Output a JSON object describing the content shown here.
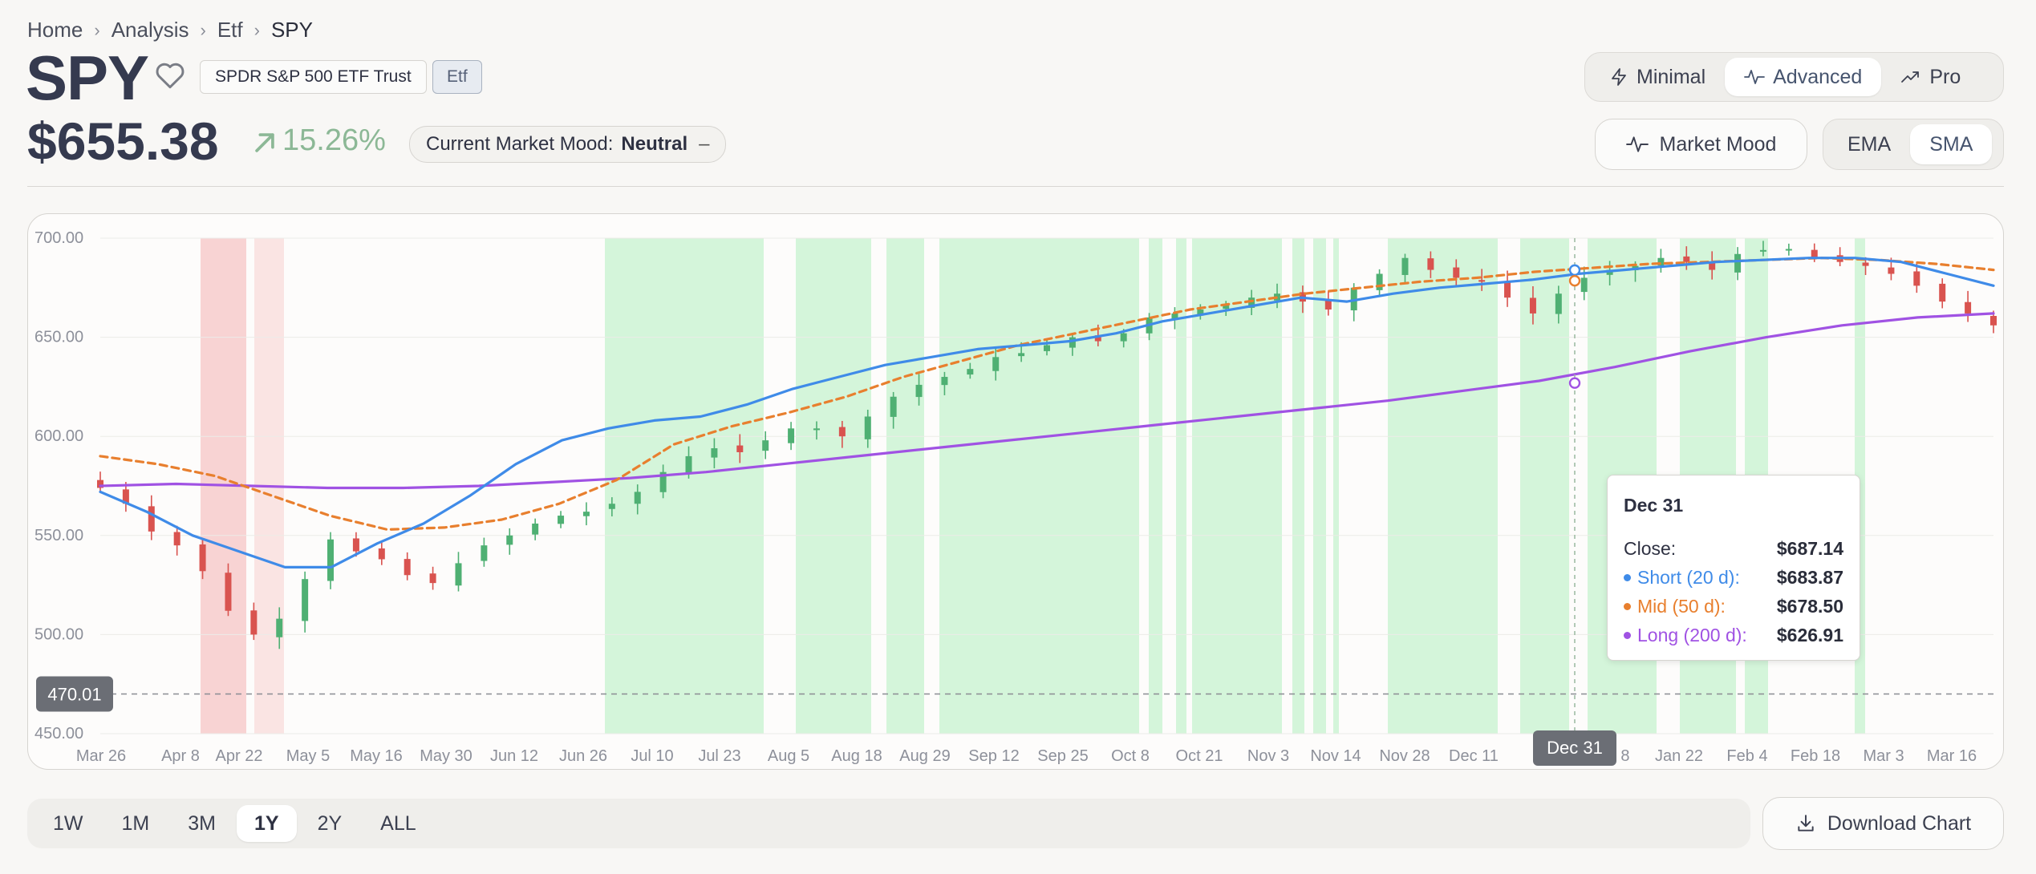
{
  "breadcrumb": [
    "Home",
    "Analysis",
    "Etf",
    "SPY"
  ],
  "header": {
    "ticker": "SPY",
    "name": "SPDR S&P 500 ETF Trust",
    "type_badge": "Etf",
    "price": "$655.38",
    "change": "15.26%",
    "mood_label": "Current Market Mood:",
    "mood_value": "Neutral",
    "mood_symbol": "–"
  },
  "view_modes": [
    {
      "label": "Minimal",
      "icon": "lightning-icon",
      "active": false
    },
    {
      "label": "Advanced",
      "icon": "pulse-icon",
      "active": true
    },
    {
      "label": "Pro",
      "icon": "trend-up-icon",
      "active": false
    }
  ],
  "market_mood_button": "Market Mood",
  "ma_types": [
    {
      "label": "EMA",
      "active": false
    },
    {
      "label": "SMA",
      "active": true
    }
  ],
  "time_ranges": [
    {
      "label": "1W",
      "active": false
    },
    {
      "label": "1M",
      "active": false
    },
    {
      "label": "3M",
      "active": false
    },
    {
      "label": "1Y",
      "active": true
    },
    {
      "label": "2Y",
      "active": false
    },
    {
      "label": "ALL",
      "active": false
    }
  ],
  "download_button": "Download Chart",
  "colors": {
    "up": "#4fb073",
    "down": "#d9534f",
    "short_ma": "#3f8be8",
    "mid_ma": "#e87f2e",
    "long_ma": "#a052e3",
    "bull_zone": "#d4f5da",
    "bear_zone": "#f8d3d3"
  },
  "chart_data": {
    "type": "candlestick",
    "x_ticks": [
      "Mar 26",
      "Apr 8",
      "Apr 22",
      "May 5",
      "May 16",
      "May 30",
      "Jun 12",
      "Jun 26",
      "Jul 10",
      "Jul 23",
      "Aug 5",
      "Aug 18",
      "Aug 29",
      "Sep 12",
      "Sep 25",
      "Oct 8",
      "Oct 21",
      "Nov 3",
      "Nov 14",
      "Nov 28",
      "Dec 11",
      "Dec 24",
      "Jan 8",
      "Jan 22",
      "Feb 4",
      "Feb 18",
      "Mar 3",
      "Mar 16"
    ],
    "y_ticks": [
      "700.00",
      "650.00",
      "600.00",
      "550.00",
      "500.00",
      "450.00"
    ],
    "ylim": [
      450,
      700
    ],
    "baseline": {
      "value": 470.01,
      "label": "470.01"
    },
    "close": [
      574,
      566,
      552,
      545,
      532,
      512,
      500,
      508,
      528,
      548,
      542,
      538,
      530,
      526,
      536,
      545,
      550,
      556,
      560,
      562,
      566,
      572,
      582,
      590,
      594,
      592,
      598,
      604,
      604,
      600,
      610,
      620,
      626,
      630,
      634,
      640,
      642,
      646,
      650,
      648,
      652,
      660,
      662,
      664,
      666,
      670,
      672,
      668,
      664,
      675,
      682,
      690,
      684,
      680,
      678,
      670,
      662,
      672,
      680,
      684,
      686,
      690,
      688,
      684,
      692,
      694,
      694,
      690,
      688,
      686,
      682,
      676,
      668,
      662,
      656
    ],
    "series": [
      {
        "name": "Short (20 d)",
        "values": [
          572,
          562,
          550,
          542,
          534,
          534,
          546,
          556,
          570,
          586,
          598,
          604,
          608,
          610,
          616,
          624,
          630,
          636,
          640,
          644,
          646,
          648,
          652,
          658,
          662,
          666,
          670,
          668,
          672,
          675,
          677,
          679,
          682,
          684,
          686,
          688,
          689,
          690,
          690,
          688,
          682,
          676
        ]
      },
      {
        "name": "Mid (50 d)",
        "values": [
          590,
          586,
          580,
          570,
          560,
          553,
          554,
          558,
          566,
          578,
          596,
          605,
          612,
          620,
          630,
          638,
          646,
          652,
          658,
          664,
          668,
          672,
          675,
          678,
          680,
          683,
          685,
          687,
          688,
          689,
          690,
          689,
          687,
          684
        ]
      },
      {
        "name": "Long (200 d)",
        "values": [
          575,
          576,
          575,
          574,
          574,
          575,
          577,
          579,
          582,
          586,
          590,
          594,
          598,
          602,
          606,
          610,
          614,
          618,
          623,
          628,
          635,
          643,
          650,
          656,
          660,
          662
        ]
      }
    ],
    "sentiment_zones": [
      {
        "type": "bear",
        "from": "Apr 4",
        "to": "Apr 15"
      },
      {
        "type": "bear",
        "from": "Apr 17",
        "to": "Apr 24"
      },
      {
        "type": "bull",
        "from": "Jun 26",
        "to": "Jul 28"
      },
      {
        "type": "bull",
        "from": "Aug 2",
        "to": "Aug 18"
      },
      {
        "type": "bull",
        "from": "Aug 21",
        "to": "Aug 29"
      },
      {
        "type": "bull",
        "from": "Sep 3",
        "to": "Oct 12"
      },
      {
        "type": "bull",
        "from": "Oct 16",
        "to": "Nov 1"
      }
    ],
    "tooltip": {
      "date": "Dec 31",
      "close_label": "Close:",
      "close_value": "$687.14",
      "short_label": "Short (20 d):",
      "short_value": "$683.87",
      "mid_label": "Mid (50 d):",
      "mid_value": "$678.50",
      "long_label": "Long (200 d):",
      "long_value": "$626.91"
    },
    "crosshair_label": "Dec 31"
  }
}
